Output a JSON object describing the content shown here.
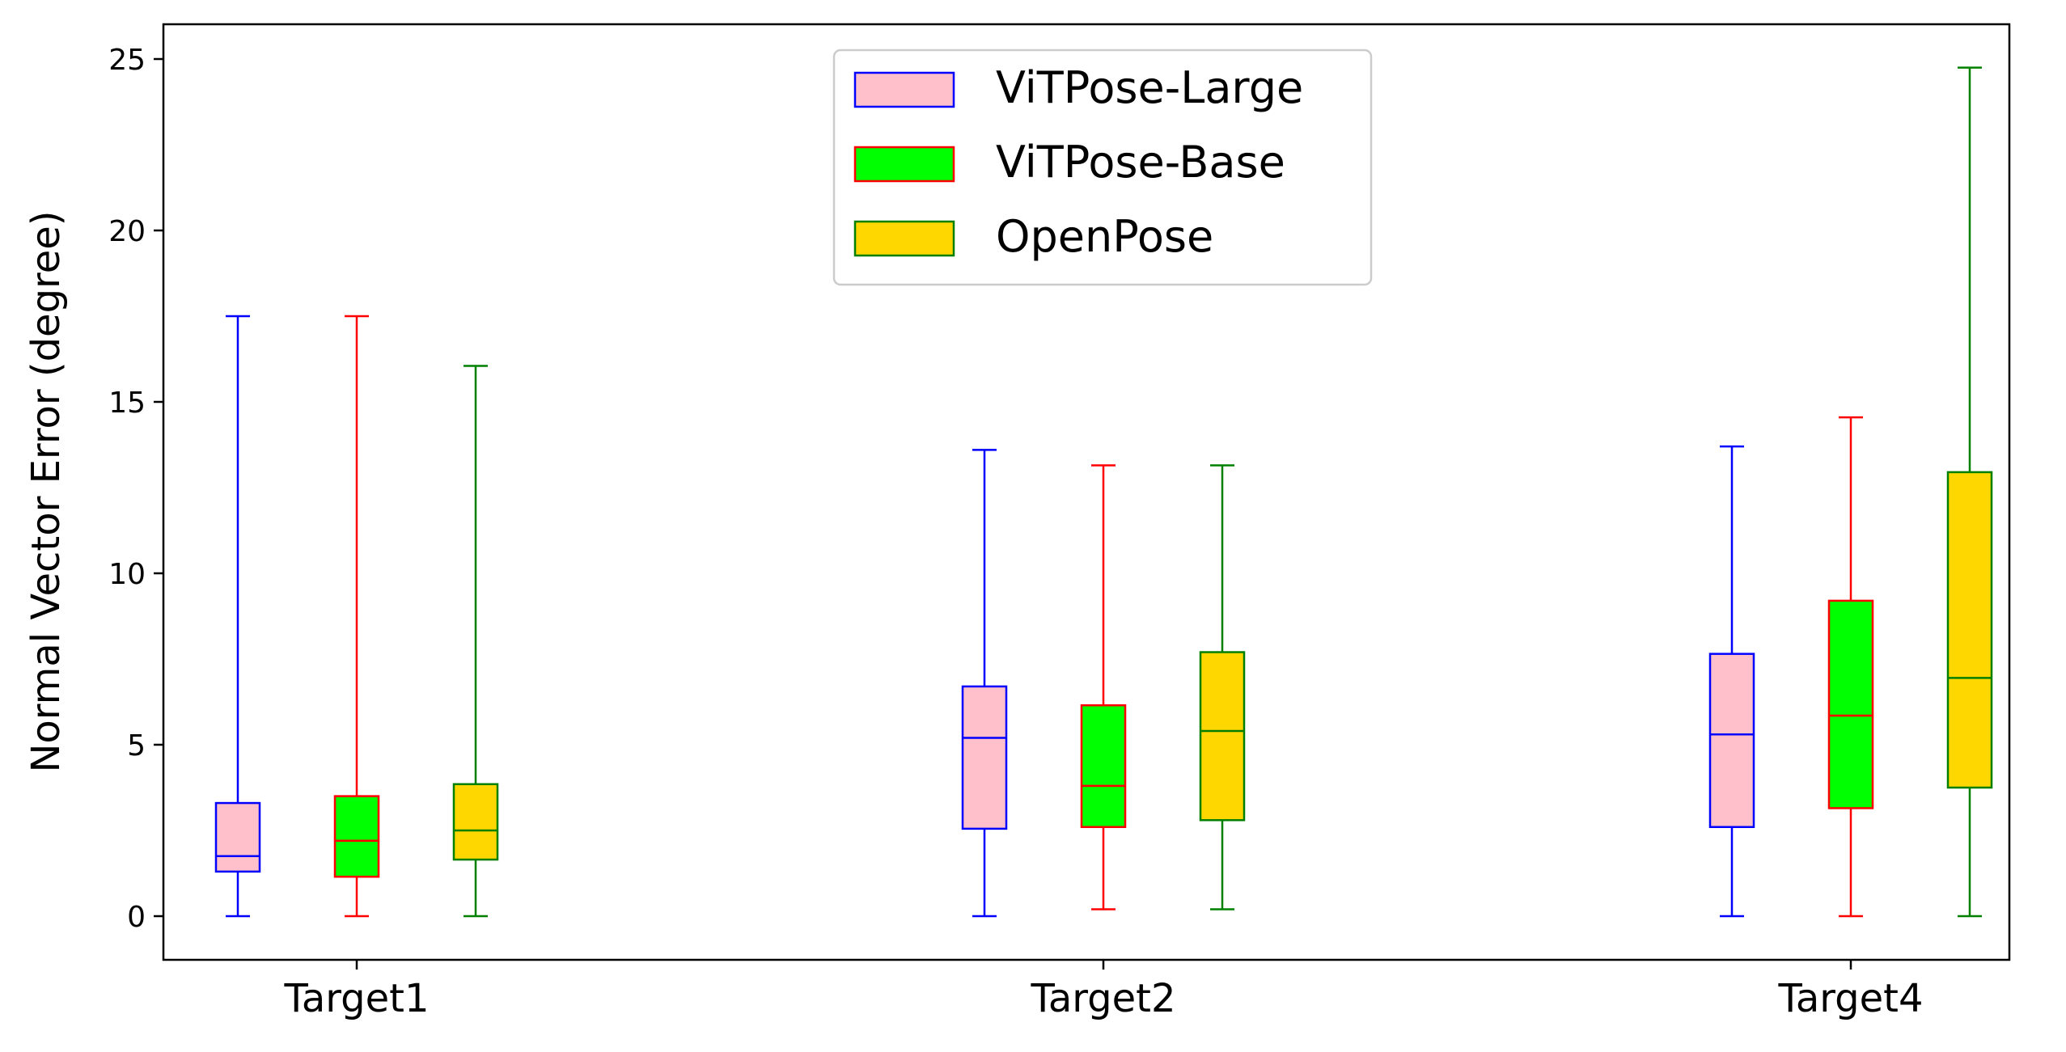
{
  "chart_data": {
    "type": "box",
    "title": "",
    "xlabel": "",
    "ylabel": "Normal Vector Error (degree)",
    "ylim": [
      -1.3,
      26
    ],
    "yticks": [
      0,
      5,
      10,
      15,
      20,
      25
    ],
    "grid": false,
    "legend_position": "top-center",
    "categories": [
      "Target1",
      "Target2",
      "Target4"
    ],
    "series": [
      {
        "name": "ViTPose-Large",
        "fill": "#FFC0CB",
        "edge": "#0000FF",
        "boxes": [
          {
            "whislo": 0.0,
            "q1": 1.3,
            "med": 1.75,
            "q3": 3.3,
            "whishi": 17.5
          },
          {
            "whislo": 0.0,
            "q1": 2.55,
            "med": 5.2,
            "q3": 6.7,
            "whishi": 13.6
          },
          {
            "whislo": 0.0,
            "q1": 2.6,
            "med": 5.3,
            "q3": 7.65,
            "whishi": 13.7
          }
        ]
      },
      {
        "name": "ViTPose-Base",
        "fill": "#00FF00",
        "edge": "#FF0000",
        "boxes": [
          {
            "whislo": 0.0,
            "q1": 1.15,
            "med": 2.2,
            "q3": 3.5,
            "whishi": 17.5
          },
          {
            "whislo": 0.2,
            "q1": 2.6,
            "med": 3.8,
            "q3": 6.15,
            "whishi": 13.15
          },
          {
            "whislo": 0.0,
            "q1": 3.15,
            "med": 5.85,
            "q3": 9.2,
            "whishi": 14.55
          }
        ]
      },
      {
        "name": "OpenPose",
        "fill": "#FFD700",
        "edge": "#008000",
        "boxes": [
          {
            "whislo": 0.0,
            "q1": 1.65,
            "med": 2.5,
            "q3": 3.85,
            "whishi": 16.05
          },
          {
            "whislo": 0.2,
            "q1": 2.8,
            "med": 5.4,
            "q3": 7.7,
            "whishi": 13.15
          },
          {
            "whislo": 0.0,
            "q1": 3.75,
            "med": 6.95,
            "q3": 12.95,
            "whishi": 24.75
          }
        ]
      }
    ]
  }
}
